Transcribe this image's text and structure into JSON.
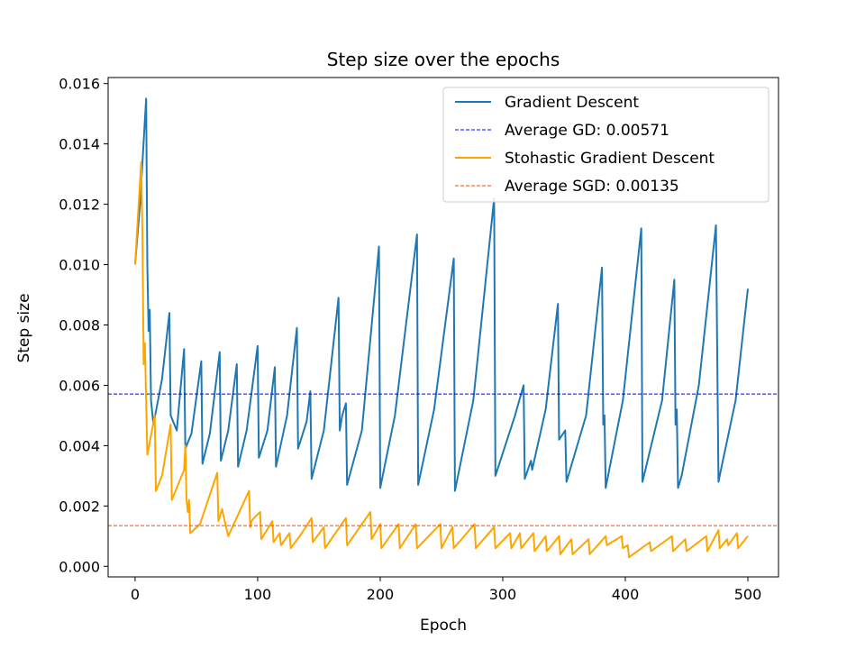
{
  "chart_data": {
    "type": "line",
    "title": "Step size over the epochs",
    "xlabel": "Epoch",
    "ylabel": "Step size",
    "xlim": [
      -22,
      525
    ],
    "ylim": [
      -0.00035,
      0.0162
    ],
    "xticks": [
      0,
      100,
      200,
      300,
      400,
      500
    ],
    "yticks": [
      0.0,
      0.002,
      0.004,
      0.006,
      0.008,
      0.01,
      0.012,
      0.014,
      0.016
    ],
    "ytick_labels": [
      "0.000",
      "0.002",
      "0.004",
      "0.006",
      "0.008",
      "0.010",
      "0.012",
      "0.014",
      "0.016"
    ],
    "grid": false,
    "legend_position": "top-right",
    "colors": {
      "gd": "#1f77b4",
      "gd_avg": "#0000ff",
      "sgd": "#ffa500",
      "sgd_avg": "#ff4500"
    },
    "series": [
      {
        "name": "Gradient Descent",
        "style": "solid",
        "x": [
          0,
          4,
          9,
          10,
          11,
          12,
          13,
          15,
          22,
          28,
          29,
          34,
          40,
          41,
          46,
          54,
          55,
          61,
          69,
          70,
          76,
          83,
          84,
          91,
          100,
          101,
          108,
          114,
          115,
          124,
          132,
          133,
          140,
          143,
          144,
          154,
          166,
          167,
          169,
          172,
          173,
          185,
          199,
          200,
          212,
          230,
          231,
          244,
          260,
          261,
          276,
          293,
          294,
          310,
          317,
          318,
          323,
          324,
          335,
          345,
          346,
          351,
          352,
          368,
          381,
          382,
          383,
          384,
          398,
          413,
          414,
          430,
          440,
          441,
          442,
          443,
          446,
          460,
          474,
          476,
          477,
          490,
          500
        ],
        "y": [
          0.01,
          0.012,
          0.0155,
          0.01,
          0.0078,
          0.0085,
          0.0055,
          0.0047,
          0.0062,
          0.0084,
          0.005,
          0.0045,
          0.0072,
          0.0039,
          0.0044,
          0.0068,
          0.0034,
          0.0044,
          0.0071,
          0.0035,
          0.0045,
          0.0067,
          0.0033,
          0.0045,
          0.0073,
          0.0036,
          0.0045,
          0.0066,
          0.0033,
          0.005,
          0.0079,
          0.0039,
          0.0048,
          0.0058,
          0.0029,
          0.0045,
          0.0089,
          0.0045,
          0.005,
          0.0054,
          0.0027,
          0.0045,
          0.0106,
          0.0026,
          0.005,
          0.011,
          0.0027,
          0.0052,
          0.0102,
          0.0025,
          0.0055,
          0.0122,
          0.003,
          0.005,
          0.006,
          0.0029,
          0.0035,
          0.0032,
          0.0052,
          0.0087,
          0.0042,
          0.0045,
          0.0028,
          0.005,
          0.0099,
          0.0047,
          0.005,
          0.0026,
          0.0055,
          0.0112,
          0.0028,
          0.0055,
          0.0095,
          0.0047,
          0.0052,
          0.0026,
          0.003,
          0.006,
          0.0113,
          0.0028,
          0.003,
          0.0055,
          0.0092
        ]
      },
      {
        "name": "Average GD: 0.00571",
        "style": "dashed",
        "constant": 0.00571
      },
      {
        "name": "Stohastic Gradient Descent",
        "style": "solid",
        "x": [
          0,
          5,
          6,
          7,
          8,
          10,
          11,
          16,
          17,
          22,
          29,
          30,
          40,
          41,
          42,
          43,
          44,
          45,
          53,
          67,
          68,
          71,
          72,
          76,
          93,
          94,
          95,
          97,
          102,
          103,
          112,
          113,
          118,
          119,
          126,
          127,
          136,
          144,
          145,
          154,
          155,
          172,
          173,
          192,
          193,
          200,
          201,
          215,
          216,
          229,
          230,
          249,
          250,
          259,
          260,
          277,
          278,
          293,
          294,
          306,
          307,
          314,
          315,
          325,
          326,
          335,
          336,
          346,
          347,
          356,
          357,
          370,
          371,
          384,
          385,
          397,
          398,
          402,
          403,
          420,
          421,
          438,
          439,
          449,
          450,
          466,
          467,
          476,
          477,
          483,
          484,
          491,
          492,
          500
        ],
        "y": [
          0.01,
          0.0134,
          0.011,
          0.0067,
          0.0074,
          0.0037,
          0.0039,
          0.005,
          0.0025,
          0.003,
          0.0047,
          0.0022,
          0.0032,
          0.004,
          0.0022,
          0.0018,
          0.0022,
          0.0011,
          0.0014,
          0.0031,
          0.0015,
          0.0019,
          0.0017,
          0.001,
          0.0025,
          0.0013,
          0.0015,
          0.0016,
          0.0018,
          0.0009,
          0.0015,
          0.0008,
          0.0011,
          0.0007,
          0.0011,
          0.0006,
          0.0011,
          0.0016,
          0.0008,
          0.0013,
          0.0006,
          0.0016,
          0.0007,
          0.0018,
          0.0009,
          0.0014,
          0.0006,
          0.0014,
          0.0006,
          0.0014,
          0.0006,
          0.0014,
          0.0006,
          0.0013,
          0.0006,
          0.0014,
          0.0006,
          0.0013,
          0.0006,
          0.0011,
          0.0006,
          0.0011,
          0.0006,
          0.0011,
          0.0005,
          0.001,
          0.0005,
          0.001,
          0.0004,
          0.0009,
          0.0004,
          0.0009,
          0.0004,
          0.001,
          0.0007,
          0.001,
          0.0006,
          0.0007,
          0.0003,
          0.0008,
          0.0005,
          0.001,
          0.0005,
          0.0009,
          0.0005,
          0.001,
          0.0005,
          0.0012,
          0.0006,
          0.0009,
          0.0007,
          0.0011,
          0.0006,
          0.001
        ]
      },
      {
        "name": "Average SGD: 0.00135",
        "style": "dashed",
        "constant": 0.00135
      }
    ]
  }
}
